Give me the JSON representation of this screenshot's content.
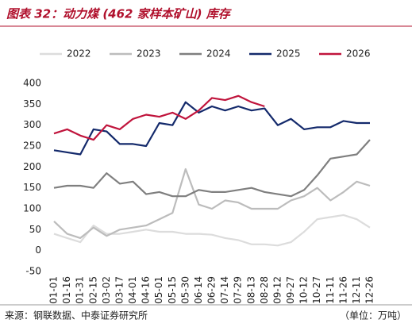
{
  "chart_data": {
    "type": "line",
    "title": "图表 32：动力煤 (462 家样本矿山) 库存",
    "source": "来源：钢联数据、中泰证券研究所",
    "unit": "（单位：万吨）",
    "categories": [
      "01-01",
      "01-16",
      "01-31",
      "02-15",
      "03-02",
      "03-17",
      "04-01",
      "04-16",
      "05-01",
      "05-15",
      "05-30",
      "06-14",
      "06-29",
      "07-14",
      "07-29",
      "08-13",
      "08-28",
      "09-12",
      "09-27",
      "10-12",
      "10-27",
      "11-11",
      "11-26",
      "12-11",
      "12-26"
    ],
    "series": [
      {
        "name": "2022",
        "color": "#dcdcdc",
        "values": [
          40,
          30,
          20,
          60,
          40,
          40,
          45,
          50,
          45,
          45,
          40,
          40,
          38,
          30,
          25,
          15,
          15,
          12,
          20,
          45,
          75,
          80,
          85,
          75,
          55
        ]
      },
      {
        "name": "2023",
        "color": "#bcbcbc",
        "values": [
          70,
          40,
          30,
          55,
          35,
          50,
          55,
          60,
          75,
          90,
          195,
          110,
          100,
          120,
          115,
          100,
          100,
          100,
          120,
          130,
          150,
          120,
          140,
          165,
          155
        ]
      },
      {
        "name": "2024",
        "color": "#7f7f7f",
        "values": [
          150,
          155,
          155,
          150,
          185,
          160,
          165,
          135,
          140,
          130,
          130,
          145,
          140,
          140,
          145,
          150,
          140,
          135,
          130,
          145,
          180,
          220,
          225,
          230,
          265
        ]
      },
      {
        "name": "2025",
        "color": "#13296b",
        "values": [
          240,
          235,
          230,
          290,
          285,
          255,
          255,
          250,
          305,
          300,
          355,
          330,
          345,
          335,
          345,
          335,
          340,
          300,
          315,
          290,
          295,
          295,
          310,
          305,
          305
        ]
      },
      {
        "name": "2026",
        "color": "#c0143c",
        "values": [
          280,
          290,
          275,
          265,
          300,
          290,
          315,
          325,
          320,
          330,
          315,
          335,
          365,
          360,
          370,
          355,
          345,
          null,
          null,
          null,
          null,
          null,
          null,
          null,
          null
        ]
      }
    ],
    "ylim": [
      -50,
      400
    ],
    "yticks": [
      -50,
      0,
      50,
      100,
      150,
      200,
      250,
      300,
      350,
      400
    ],
    "grid": false
  }
}
